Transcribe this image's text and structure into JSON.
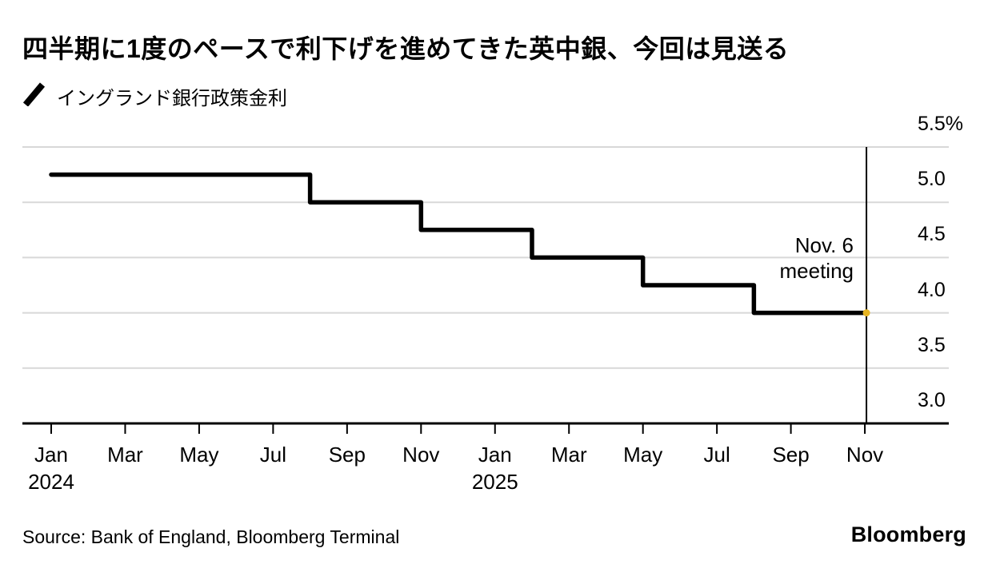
{
  "header": {
    "title": "四半期に1度のペースで利下げを進めてきた英中銀、今回は見送る"
  },
  "legend": {
    "label": "イングランド銀行政策金利",
    "marker_color": "#000000"
  },
  "chart_data": {
    "type": "line",
    "step": true,
    "title": "四半期に1度のペースで利下げを進めてきた英中銀、今回は見送る",
    "legend_entries": [
      "イングランド銀行政策金利"
    ],
    "xlabel": "",
    "ylabel": "",
    "unit": "%",
    "ylim": [
      3.0,
      5.5
    ],
    "grid": "horizontal",
    "grid_color": "#d8d8d8",
    "line_color": "#000000",
    "series": [
      {
        "name": "イングランド銀行政策金利",
        "color": "#000000",
        "points": [
          [
            "2024-01",
            5.25
          ],
          [
            "2024-08",
            5.0
          ],
          [
            "2024-11",
            4.75
          ],
          [
            "2025-02",
            4.5
          ],
          [
            "2025-05",
            4.25
          ],
          [
            "2025-08",
            4.0
          ],
          [
            "2025-11",
            4.0
          ]
        ]
      }
    ],
    "y_ticks": [
      {
        "value": 5.5,
        "label": "5.5%"
      },
      {
        "value": 5.0,
        "label": "5.0"
      },
      {
        "value": 4.5,
        "label": "4.5"
      },
      {
        "value": 4.0,
        "label": "4.0"
      },
      {
        "value": 3.5,
        "label": "3.5"
      },
      {
        "value": 3.0,
        "label": "3.0"
      }
    ],
    "x_ticks": [
      {
        "date": "2024-01",
        "label": "Jan",
        "year": "2024"
      },
      {
        "date": "2024-03",
        "label": "Mar"
      },
      {
        "date": "2024-05",
        "label": "May"
      },
      {
        "date": "2024-07",
        "label": "Jul"
      },
      {
        "date": "2024-09",
        "label": "Sep"
      },
      {
        "date": "2024-11",
        "label": "Nov"
      },
      {
        "date": "2025-01",
        "label": "Jan",
        "year": "2025"
      },
      {
        "date": "2025-03",
        "label": "Mar"
      },
      {
        "date": "2025-05",
        "label": "May"
      },
      {
        "date": "2025-07",
        "label": "Jul"
      },
      {
        "date": "2025-09",
        "label": "Sep"
      },
      {
        "date": "2025-11",
        "label": "Nov"
      }
    ],
    "marker": {
      "date": "2025-11",
      "label_line1": "Nov. 6",
      "label_line2": "meeting",
      "line_color": "#000000",
      "dot_color": "#e6b422",
      "dot_value": 4.0
    }
  },
  "footer": {
    "source": "Source: Bank of England, Bloomberg Terminal",
    "logo": "Bloomberg"
  }
}
